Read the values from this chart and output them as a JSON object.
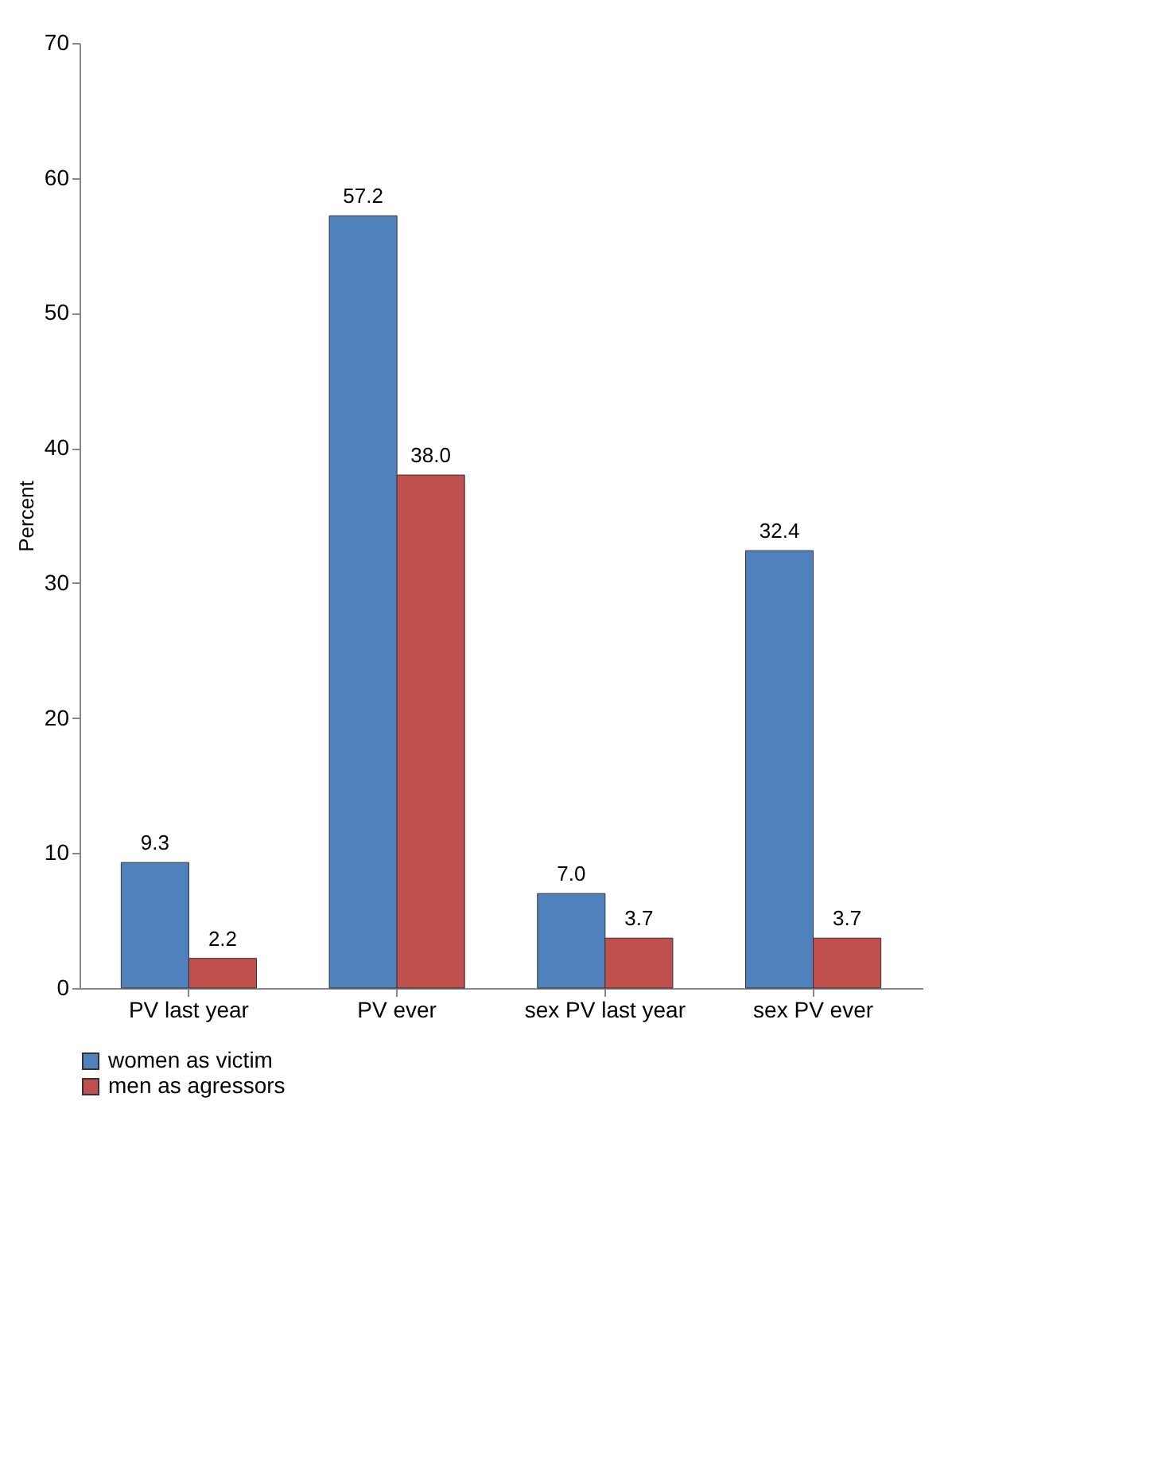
{
  "chart_data": {
    "type": "bar",
    "ylabel": "Percent",
    "categories": [
      "PV last year",
      "PV ever",
      "sex PV last year",
      "sex PV ever"
    ],
    "series": [
      {
        "name": "women as victim",
        "color": "#4f81bd",
        "values": [
          9.3,
          57.2,
          7.0,
          32.4
        ],
        "value_labels": [
          "9.3",
          "57.2",
          "7.0",
          "32.4"
        ]
      },
      {
        "name": "men as agressors",
        "color": "#c0504d",
        "values": [
          2.2,
          38.0,
          3.7,
          3.7
        ],
        "value_labels": [
          "2.2",
          "38.0",
          "3.7",
          "3.7"
        ]
      }
    ],
    "ylim": [
      0,
      70
    ],
    "yticks": [
      0,
      10,
      20,
      30,
      40,
      50,
      60,
      70
    ],
    "grid": false,
    "legend": "bottom"
  }
}
